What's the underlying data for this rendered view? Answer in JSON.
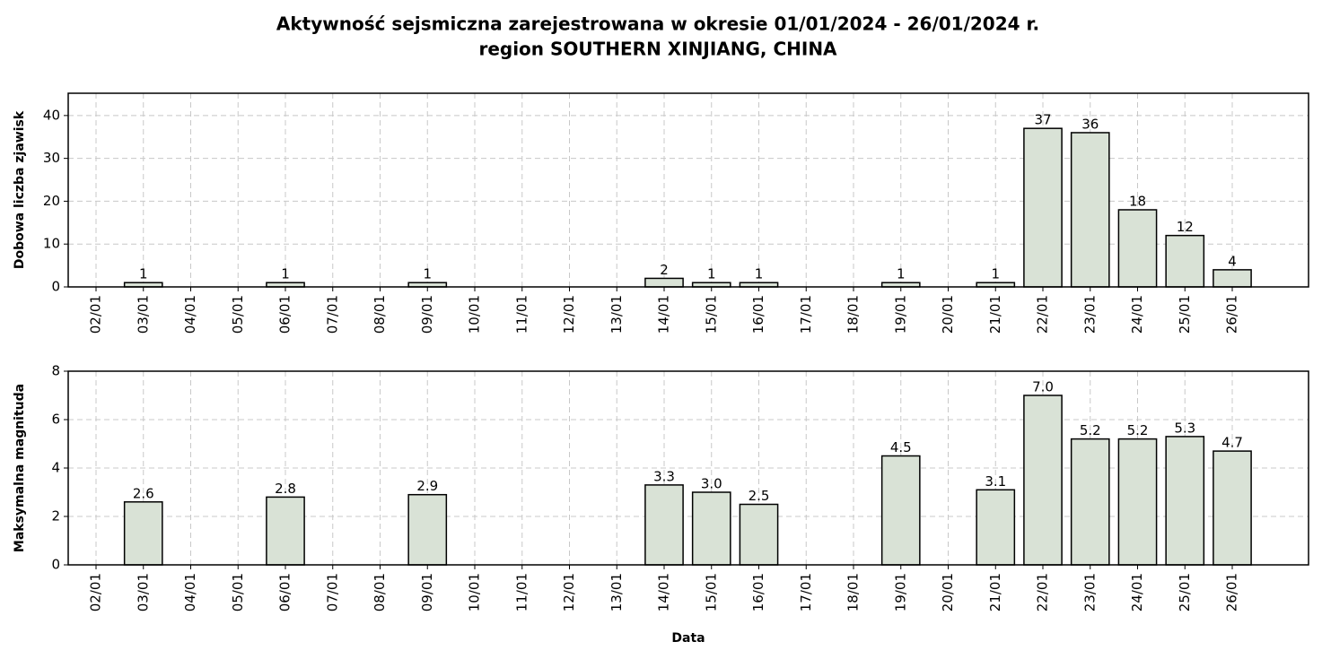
{
  "title": [
    "Aktywność sejsmiczna zarejestrowana w okresie 01/01/2024 - 26/01/2024 r.",
    "region SOUTHERN XINJIANG, CHINA"
  ],
  "chart_data": [
    {
      "type": "bar",
      "ylabel": "Dobowa liczba zjawisk",
      "categories": [
        "02/01",
        "03/01",
        "04/01",
        "05/01",
        "06/01",
        "07/01",
        "08/01",
        "09/01",
        "10/01",
        "11/01",
        "12/01",
        "13/01",
        "14/01",
        "15/01",
        "16/01",
        "17/01",
        "18/01",
        "19/01",
        "20/01",
        "21/01",
        "22/01",
        "23/01",
        "24/01",
        "25/01",
        "26/01"
      ],
      "values": [
        0,
        1,
        0,
        0,
        1,
        0,
        0,
        1,
        0,
        0,
        0,
        0,
        2,
        1,
        1,
        0,
        0,
        1,
        0,
        1,
        37,
        36,
        18,
        12,
        4
      ],
      "color": "#d9e2d6",
      "edgecolor": "#000000",
      "ylim": [
        0,
        45.2
      ],
      "yticks": [
        0,
        10,
        20,
        30,
        40
      ],
      "grid": true
    },
    {
      "type": "bar",
      "ylabel": "Maksymalna magnituda",
      "xlabel": "Data",
      "categories": [
        "02/01",
        "03/01",
        "04/01",
        "05/01",
        "06/01",
        "07/01",
        "08/01",
        "09/01",
        "10/01",
        "11/01",
        "12/01",
        "13/01",
        "14/01",
        "15/01",
        "16/01",
        "17/01",
        "18/01",
        "19/01",
        "20/01",
        "21/01",
        "22/01",
        "23/01",
        "24/01",
        "25/01",
        "26/01"
      ],
      "values": [
        null,
        2.6,
        null,
        null,
        2.8,
        null,
        null,
        2.9,
        null,
        null,
        null,
        null,
        3.3,
        3.0,
        2.5,
        null,
        null,
        4.5,
        null,
        3.1,
        7.0,
        5.2,
        5.2,
        5.3,
        4.7
      ],
      "value_labels": [
        null,
        "2.6",
        null,
        null,
        "2.8",
        null,
        null,
        "2.9",
        null,
        null,
        null,
        null,
        "3.3",
        "3.0",
        "2.5",
        null,
        null,
        "4.5",
        null,
        "3.1",
        "7.0",
        "5.2",
        "5.2",
        "5.3",
        "4.7"
      ],
      "color": "#d9e2d6",
      "edgecolor": "#000000",
      "ylim": [
        0,
        8
      ],
      "yticks": [
        0,
        2,
        4,
        6,
        8
      ],
      "grid": true
    }
  ]
}
